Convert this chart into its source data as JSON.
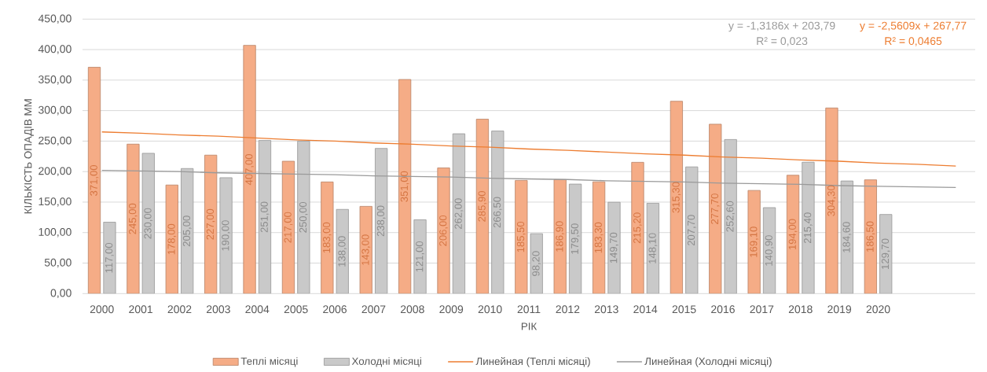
{
  "chart_data": {
    "type": "bar",
    "xlabel": "РІК",
    "ylabel": "КІЛЬКІСТЬ ОПАДІВ ММ",
    "categories": [
      "2000",
      "2001",
      "2002",
      "2003",
      "2004",
      "2005",
      "2006",
      "2007",
      "2008",
      "2009",
      "2010",
      "2011",
      "2012",
      "2013",
      "2014",
      "2015",
      "2016",
      "2017",
      "2018",
      "2019",
      "2020",
      null,
      null
    ],
    "series": [
      {
        "name": "Теплі місяці",
        "color": "#f5ac86",
        "values": [
          371,
          245,
          178,
          227,
          407,
          217,
          183,
          143,
          351,
          206,
          285.9,
          185.5,
          186.9,
          183.3,
          215.2,
          315.3,
          277.7,
          169.1,
          194,
          304.3,
          186.5,
          null,
          null
        ],
        "value_labels": [
          "371,00",
          "245,00",
          "178,00",
          "227,00",
          "407,00",
          "217,00",
          "183,00",
          "143,00",
          "351,00",
          "206,00",
          "285,90",
          "185,50",
          "186,90",
          "183,30",
          "215,20",
          "315,30",
          "277,70",
          "169,10",
          "194,00",
          "304,30",
          "186,50",
          null,
          null
        ]
      },
      {
        "name": "Холодні місяці",
        "color": "#c9c9c9",
        "values": [
          117,
          230,
          205,
          190,
          251,
          250,
          138,
          238,
          121,
          262,
          266.5,
          98.2,
          179.5,
          149.7,
          148.1,
          207.7,
          252.6,
          140.9,
          215.4,
          184.6,
          129.7,
          null,
          null
        ],
        "value_labels": [
          "117,00",
          "230,00",
          "205,00",
          "190,00",
          "251,00",
          "250,00",
          "138,00",
          "238,00",
          "121,00",
          "262,00",
          "266,50",
          "98,20",
          "179,50",
          "149,70",
          "148,10",
          "207,70",
          "252,60",
          "140,90",
          "215,40",
          "184,60",
          "129,70",
          null,
          null
        ]
      },
      {
        "name": "Линейная (Теплі місяці)",
        "type": "line",
        "color": "#ed7d31",
        "values": [
          265,
          263,
          260,
          258,
          255,
          252,
          250,
          247,
          245,
          242,
          240,
          237,
          235,
          232,
          229,
          227,
          224,
          222,
          219,
          217,
          214,
          212,
          209
        ]
      },
      {
        "name": "Линейная (Холодні місяці)",
        "type": "line",
        "color": "#9a9a9a",
        "values": [
          202,
          201,
          200,
          198,
          197,
          196,
          195,
          193,
          192,
          191,
          189,
          188,
          187,
          185,
          184,
          183,
          181,
          180,
          179,
          177,
          176,
          175,
          174
        ]
      }
    ],
    "ylim": [
      0,
      450
    ],
    "yticks": [
      {
        "value": 0,
        "label": "0,00"
      },
      {
        "value": 50,
        "label": "50,00"
      },
      {
        "value": 100,
        "label": "100,00"
      },
      {
        "value": 150,
        "label": "150,00"
      },
      {
        "value": 200,
        "label": "200,00"
      },
      {
        "value": 250,
        "label": "250,00"
      },
      {
        "value": 300,
        "label": "300,00"
      },
      {
        "value": 350,
        "label": "350,00"
      },
      {
        "value": 400,
        "label": "400,00"
      },
      {
        "value": 450,
        "label": "450,00"
      }
    ],
    "grid": "y",
    "legend": "bottom",
    "annotations": [
      "y = -2,5609x + 267,77",
      "R² = 0,0465",
      "y = -1,3186x + 203,79",
      "R² = 0,023"
    ]
  }
}
